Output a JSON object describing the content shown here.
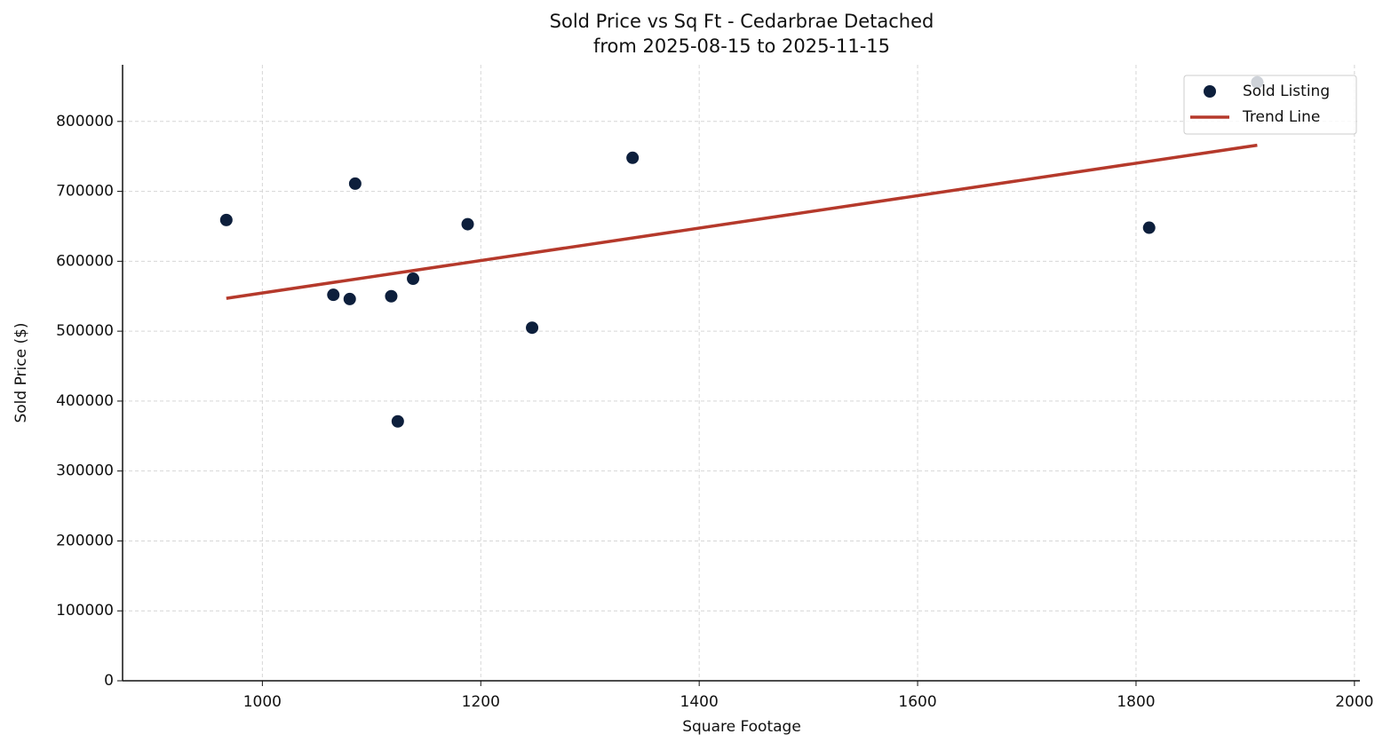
{
  "chart_data": {
    "type": "scatter",
    "title": "Sold Price vs Sq Ft - Cedarbrae Detached",
    "subtitle": "from 2025-08-15 to 2025-11-15",
    "x_label": "Square Footage",
    "y_label": "Sold Price ($)",
    "xlim": [
      872,
      2005
    ],
    "ylim": [
      0,
      881000
    ],
    "xticks": [
      1000,
      1200,
      1400,
      1600,
      1800,
      2000
    ],
    "yticks": [
      0,
      100000,
      200000,
      300000,
      400000,
      500000,
      600000,
      700000,
      800000
    ],
    "grid": true,
    "legend": "upper right",
    "series": [
      {
        "name": "Sold Listing",
        "type": "scatter",
        "color": "#0d1f3c",
        "x": [
          967,
          1065,
          1080,
          1085,
          1118,
          1124,
          1138,
          1188,
          1247,
          1339,
          1812,
          1911
        ],
        "values": [
          659000,
          552000,
          546000,
          711000,
          550000,
          371000,
          575000,
          653000,
          505000,
          748000,
          648000,
          856000
        ]
      },
      {
        "name": "Trend Line",
        "type": "line",
        "color": "#b5392b",
        "x": [
          967,
          1911
        ],
        "values": [
          547000,
          766000
        ]
      }
    ]
  }
}
